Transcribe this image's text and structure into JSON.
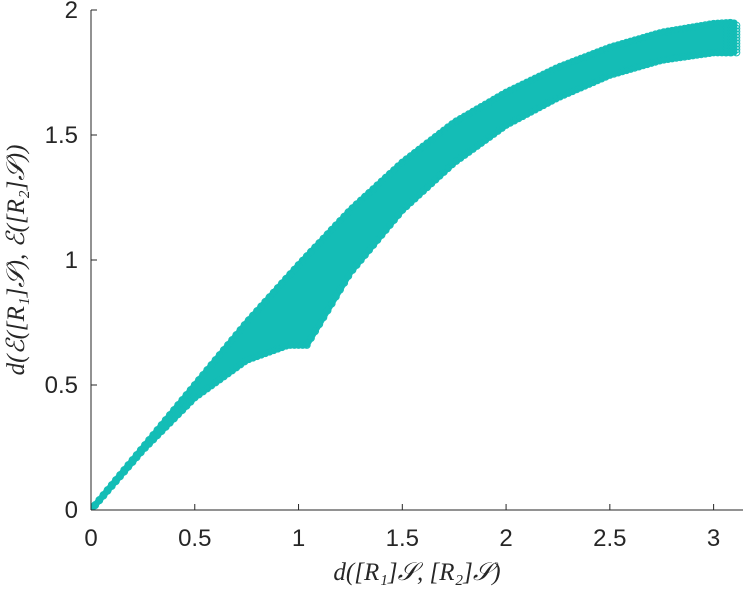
{
  "chart_data": {
    "type": "scatter",
    "title": "",
    "xlabel": "d([R₁]𝒮, [R₂]𝒮)",
    "ylabel": "d(ℰ([R₁]𝒮), ℰ([R₂]𝒮))",
    "xlim": [
      0,
      3.1416
    ],
    "ylim": [
      0,
      2
    ],
    "x_ticks": [
      0,
      0.5,
      1,
      1.5,
      2,
      2.5,
      3
    ],
    "x_tick_labels": [
      "0",
      "0.5",
      "1",
      "1.5",
      "2",
      "2.5",
      "3"
    ],
    "y_ticks": [
      0,
      0.5,
      1,
      1.5,
      2
    ],
    "y_tick_labels": [
      "0",
      "0.5",
      "1",
      "1.5",
      "2"
    ],
    "grid": false,
    "legend": "none",
    "marker": "open circle",
    "color": "#14BDB6",
    "upper_envelope": [
      {
        "x": 0,
        "y": 0
      },
      {
        "x": 0.25,
        "y": 0.25
      },
      {
        "x": 0.5,
        "y": 0.5
      },
      {
        "x": 0.75,
        "y": 0.75
      },
      {
        "x": 1.0,
        "y": 0.98
      },
      {
        "x": 1.25,
        "y": 1.2
      },
      {
        "x": 1.5,
        "y": 1.39
      },
      {
        "x": 1.75,
        "y": 1.55
      },
      {
        "x": 2.0,
        "y": 1.67
      },
      {
        "x": 2.25,
        "y": 1.77
      },
      {
        "x": 2.5,
        "y": 1.85
      },
      {
        "x": 2.75,
        "y": 1.91
      },
      {
        "x": 3.0,
        "y": 1.945
      },
      {
        "x": 3.1,
        "y": 1.95
      }
    ],
    "lower_envelope": [
      {
        "x": 0,
        "y": 0
      },
      {
        "x": 0.25,
        "y": 0.24
      },
      {
        "x": 0.5,
        "y": 0.45
      },
      {
        "x": 0.75,
        "y": 0.6
      },
      {
        "x": 0.95,
        "y": 0.66
      },
      {
        "x": 1.04,
        "y": 0.66
      },
      {
        "x": 1.25,
        "y": 0.95
      },
      {
        "x": 1.5,
        "y": 1.2
      },
      {
        "x": 1.75,
        "y": 1.39
      },
      {
        "x": 2.0,
        "y": 1.54
      },
      {
        "x": 2.25,
        "y": 1.65
      },
      {
        "x": 2.5,
        "y": 1.74
      },
      {
        "x": 2.75,
        "y": 1.8
      },
      {
        "x": 3.0,
        "y": 1.83
      },
      {
        "x": 3.1,
        "y": 1.83
      }
    ]
  }
}
